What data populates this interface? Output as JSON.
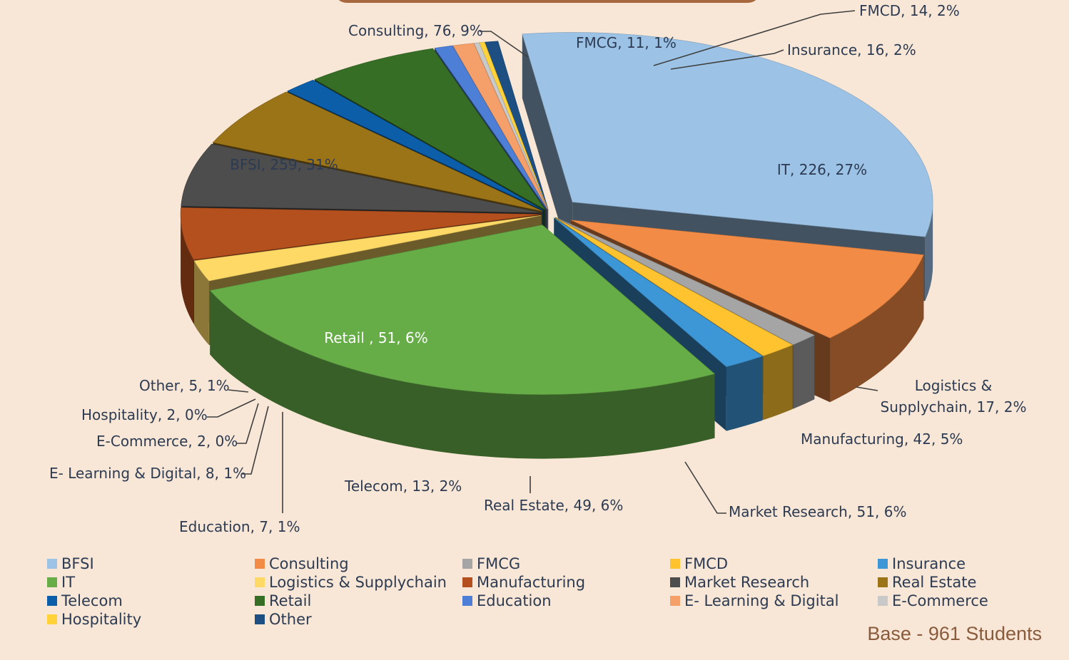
{
  "chart_data": {
    "type": "pie",
    "style": "3d-exploded",
    "slices": [
      {
        "label": "BFSI",
        "value": 259,
        "percent": "31%",
        "color": "#9cc3e6"
      },
      {
        "label": "Consulting",
        "value": 76,
        "percent": "9%",
        "color": "#f28b45"
      },
      {
        "label": "FMCG",
        "value": 11,
        "percent": "1%",
        "color": "#a5a5a5"
      },
      {
        "label": "FMCD",
        "value": 14,
        "percent": "2%",
        "color": "#ffc330"
      },
      {
        "label": "Insurance",
        "value": 16,
        "percent": "2%",
        "color": "#3d96d6"
      },
      {
        "label": "IT",
        "value": 226,
        "percent": "27%",
        "color": "#66ad47"
      },
      {
        "label": "Logistics & Supplychain",
        "value": 17,
        "percent": "2%",
        "color": "#ffd966"
      },
      {
        "label": "Manufacturing",
        "value": 42,
        "percent": "5%",
        "color": "#b4501e"
      },
      {
        "label": "Market Research",
        "value": 51,
        "percent": "6%",
        "color": "#4d4d4d"
      },
      {
        "label": "Real Estate",
        "value": 49,
        "percent": "6%",
        "color": "#9c7418"
      },
      {
        "label": "Telecom",
        "value": 13,
        "percent": "2%",
        "color": "#0d5ea8"
      },
      {
        "label": "Retail",
        "value": 51,
        "percent": "6%",
        "color": "#366e26"
      },
      {
        "label": "Education",
        "value": 7,
        "percent": "1%",
        "color": "#4e7fd6"
      },
      {
        "label": "E- Learning & Digital",
        "value": 8,
        "percent": "1%",
        "color": "#f5a06a"
      },
      {
        "label": "E-Commerce",
        "value": 2,
        "percent": "0%",
        "color": "#c9c9c9"
      },
      {
        "label": "Hospitality",
        "value": 2,
        "percent": "0%",
        "color": "#ffd23a"
      },
      {
        "label": "Other",
        "value": 5,
        "percent": "1%",
        "color": "#1d4f82"
      }
    ],
    "slice_labels": [
      "BFSI, 259, 31%",
      "Consulting, 76, 9%",
      "FMCG, 11, 1%",
      "FMCD, 14, 2%",
      "Insurance, 16, 2%",
      "IT, 226, 27%",
      "Logistics &",
      "Supplychain, 17, 2%",
      "Manufacturing, 42, 5%",
      "Market Research, 51, 6%",
      "Real Estate, 49, 6%",
      "Telecom, 13, 2%",
      "Retail , 51, 6%",
      "Education, 7, 1%",
      "E- Learning & Digital, 8, 1%",
      "E-Commerce, 2, 0%",
      "Hospitality, 2, 0%",
      "Other, 5, 1%"
    ],
    "legend": {
      "placement": "bottom",
      "entries": [
        {
          "label": "BFSI",
          "color": "#9cc3e6"
        },
        {
          "label": "Consulting",
          "color": "#f28b45"
        },
        {
          "label": "FMCG",
          "color": "#a5a5a5"
        },
        {
          "label": "FMCD",
          "color": "#ffc330"
        },
        {
          "label": "Insurance",
          "color": "#3d96d6"
        },
        {
          "label": "IT",
          "color": "#66ad47"
        },
        {
          "label": "Logistics & Supplychain",
          "color": "#ffd966"
        },
        {
          "label": "Manufacturing",
          "color": "#b4501e"
        },
        {
          "label": "Market Research",
          "color": "#4d4d4d"
        },
        {
          "label": "Real Estate",
          "color": "#9c7418"
        },
        {
          "label": "Telecom",
          "color": "#0d5ea8"
        },
        {
          "label": "Retail",
          "color": "#366e26"
        },
        {
          "label": "Education",
          "color": "#4e7fd6"
        },
        {
          "label": "E- Learning & Digital",
          "color": "#f5a06a"
        },
        {
          "label": "E-Commerce",
          "color": "#c9c9c9"
        },
        {
          "label": "Hospitality",
          "color": "#ffd23a"
        },
        {
          "label": "Other",
          "color": "#1d4f82"
        }
      ]
    },
    "note": "Base - 961 Students"
  }
}
